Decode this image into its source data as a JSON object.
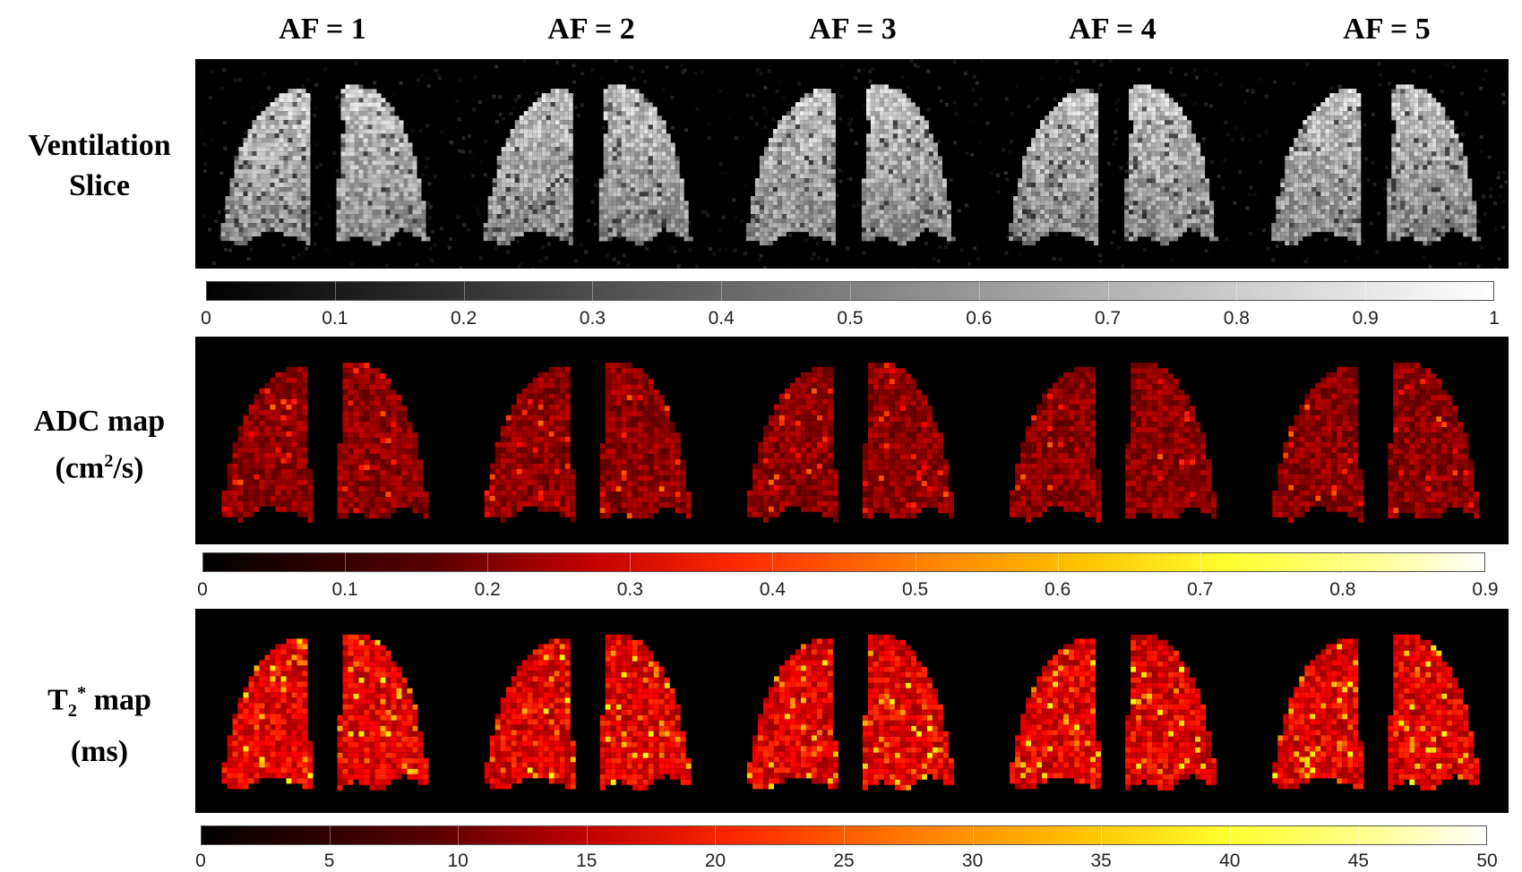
{
  "columns": [
    "AF = 1",
    "AF = 2",
    "AF = 3",
    "AF = 4",
    "AF = 5"
  ],
  "rows": {
    "ventilation": {
      "line1": "Ventilation",
      "line2": "Slice"
    },
    "adc": {
      "line1": "ADC map",
      "line2_pre": "(cm",
      "line2_sup": "2",
      "line2_post": "/s)"
    },
    "t2": {
      "line1_pre": "T",
      "line1_sub": "2",
      "line1_sup": "*",
      "line1_post": " map",
      "line2": "(ms)"
    }
  },
  "colorbars": {
    "ventilation": {
      "colormap": "gray",
      "ticks": [
        "0",
        "0.1",
        "0.2",
        "0.3",
        "0.4",
        "0.5",
        "0.6",
        "0.7",
        "0.8",
        "0.9",
        "1"
      ]
    },
    "adc": {
      "colormap": "hot",
      "ticks": [
        "0",
        "0.1",
        "0.2",
        "0.3",
        "0.4",
        "0.5",
        "0.6",
        "0.7",
        "0.8",
        "0.9"
      ]
    },
    "t2": {
      "colormap": "hot",
      "ticks": [
        "0",
        "5",
        "10",
        "15",
        "20",
        "25",
        "30",
        "35",
        "40",
        "45",
        "50"
      ]
    }
  },
  "colors": {
    "gray_low": "#000000",
    "gray_high": "#ffffff",
    "hot_mid": "#ff2000",
    "hot_high": "#ffff40",
    "panel_bg": "#000000"
  }
}
